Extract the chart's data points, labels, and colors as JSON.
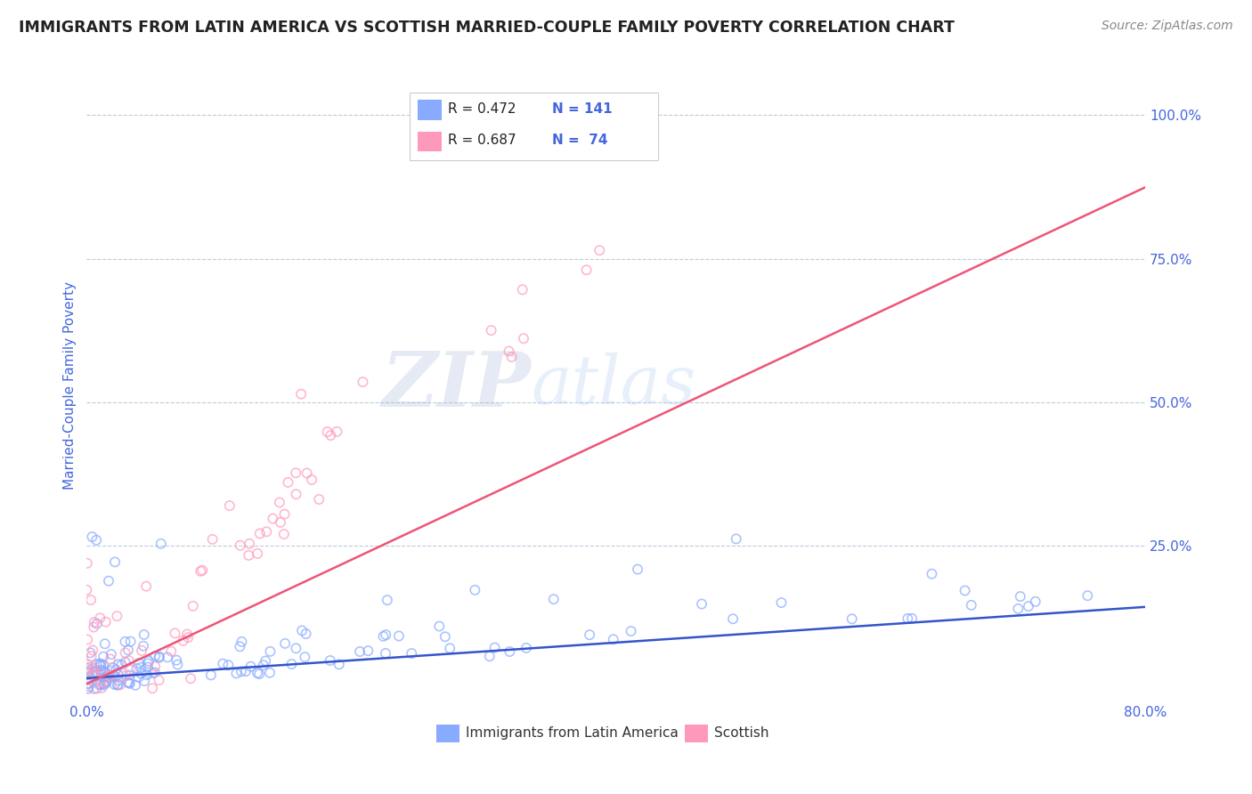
{
  "title": "IMMIGRANTS FROM LATIN AMERICA VS SCOTTISH MARRIED-COUPLE FAMILY POVERTY CORRELATION CHART",
  "source": "Source: ZipAtlas.com",
  "ylabel": "Married-Couple Family Poverty",
  "xlim": [
    0.0,
    0.8
  ],
  "ylim": [
    -0.02,
    1.08
  ],
  "blue_color": "#88AAFF",
  "pink_color": "#FF99BB",
  "blue_line_color": "#3355CC",
  "pink_line_color": "#EE5577",
  "watermark_zip": "ZIP",
  "watermark_atlas": "atlas",
  "legend_label_blue": "Immigrants from Latin America",
  "legend_label_pink": "Scottish",
  "title_color": "#222222",
  "axis_label_color": "#4466DD",
  "grid_color": "#BBCCDD",
  "background_color": "#FFFFFF",
  "blue_n": 141,
  "pink_n": 74,
  "blue_R": 0.472,
  "pink_R": 0.687,
  "blue_scatter_seed": 7,
  "pink_scatter_seed": 13
}
